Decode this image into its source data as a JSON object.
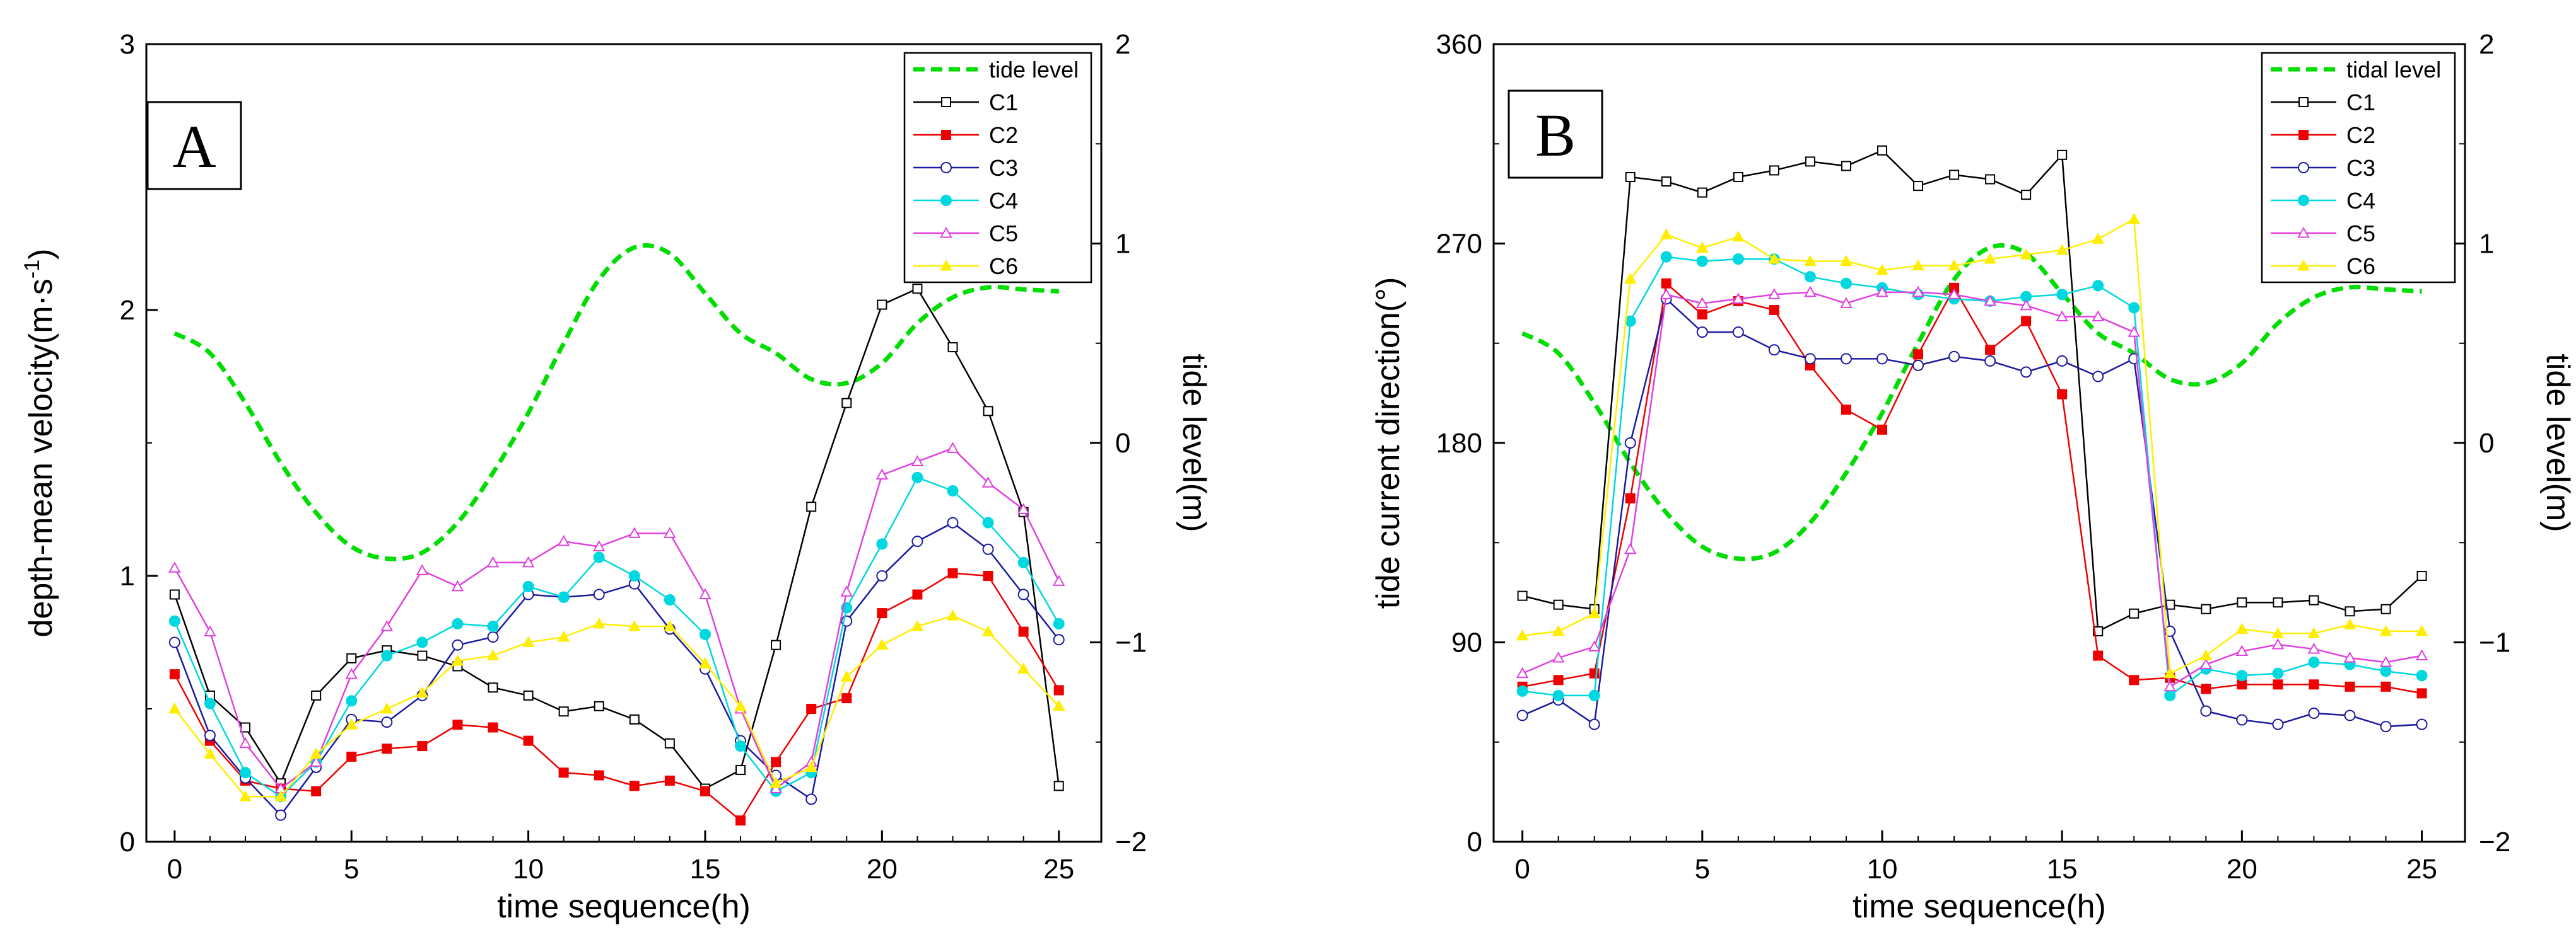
{
  "chart_data": [
    {
      "type": "line",
      "panel_label": "A",
      "xlabel": "time sequence(h)",
      "ylabel": "depth-mean velocity(m·s",
      "ylabel_sup": "-1",
      "ylabel_end": ")",
      "y2label": "tide level(m)",
      "xlim": [
        -0.8,
        26.2
      ],
      "ylim": [
        0,
        3
      ],
      "y2lim": [
        -2,
        2
      ],
      "xticks": [
        0,
        5,
        10,
        15,
        20,
        25
      ],
      "yticks": [
        0,
        1,
        2,
        3
      ],
      "y2ticks": [
        -2,
        -1,
        0,
        1,
        2
      ],
      "ytick_labels": [
        "0",
        "1",
        "2",
        "3"
      ],
      "y2tick_labels": [
        "−2",
        "−1",
        "0",
        "1",
        "2"
      ],
      "legend_position": "top-right",
      "tide": {
        "name": "tide level",
        "color": "#00dd00",
        "x": [
          0,
          1,
          2,
          3,
          4,
          5,
          6,
          7,
          8,
          9,
          10,
          11,
          12,
          13,
          14,
          15,
          16,
          17,
          18,
          19,
          20,
          21,
          22,
          23,
          24,
          25
        ],
        "values": [
          0.55,
          0.45,
          0.2,
          -0.1,
          -0.35,
          -0.52,
          -0.58,
          -0.55,
          -0.4,
          -0.15,
          0.15,
          0.5,
          0.82,
          0.98,
          0.95,
          0.75,
          0.55,
          0.45,
          0.32,
          0.3,
          0.4,
          0.6,
          0.73,
          0.78,
          0.77,
          0.76
        ]
      },
      "series": [
        {
          "name": "C1",
          "color": "#000000",
          "marker": "square",
          "fill": "none",
          "values": [
            0.93,
            0.55,
            0.43,
            0.22,
            0.55,
            0.69,
            0.72,
            0.7,
            0.66,
            0.58,
            0.55,
            0.49,
            0.51,
            0.46,
            0.37,
            0.2,
            0.27,
            0.74,
            1.26,
            1.65,
            2.02,
            2.08,
            1.86,
            1.62,
            1.24,
            0.21
          ]
        },
        {
          "name": "C2",
          "color": "#ee0000",
          "marker": "square",
          "fill": "solid",
          "values": [
            0.63,
            0.38,
            0.23,
            0.2,
            0.19,
            0.32,
            0.35,
            0.36,
            0.44,
            0.43,
            0.38,
            0.26,
            0.25,
            0.21,
            0.23,
            0.19,
            0.08,
            0.3,
            0.5,
            0.54,
            0.86,
            0.93,
            1.01,
            1.0,
            0.79,
            0.57
          ]
        },
        {
          "name": "C3",
          "color": "#1a1aa0",
          "marker": "circle",
          "fill": "none",
          "values": [
            0.75,
            0.4,
            0.24,
            0.1,
            0.28,
            0.46,
            0.45,
            0.55,
            0.74,
            0.77,
            0.93,
            0.92,
            0.93,
            0.97,
            0.8,
            0.65,
            0.38,
            0.25,
            0.16,
            0.83,
            1.0,
            1.13,
            1.2,
            1.1,
            0.93,
            0.76
          ]
        },
        {
          "name": "C4",
          "color": "#00d8e0",
          "marker": "circle",
          "fill": "solid",
          "values": [
            0.83,
            0.52,
            0.26,
            0.17,
            0.3,
            0.53,
            0.7,
            0.75,
            0.82,
            0.81,
            0.96,
            0.92,
            1.07,
            1.0,
            0.91,
            0.78,
            0.36,
            0.19,
            0.26,
            0.88,
            1.12,
            1.37,
            1.32,
            1.2,
            1.05,
            0.82
          ]
        },
        {
          "name": "C5",
          "color": "#e040e0",
          "marker": "triangle",
          "fill": "none",
          "values": [
            1.03,
            0.79,
            0.37,
            0.2,
            0.3,
            0.63,
            0.81,
            1.02,
            0.96,
            1.05,
            1.05,
            1.13,
            1.11,
            1.16,
            1.16,
            0.93,
            0.5,
            0.2,
            0.3,
            0.94,
            1.38,
            1.43,
            1.48,
            1.35,
            1.25,
            0.98
          ]
        },
        {
          "name": "C6",
          "color": "#ffee00",
          "marker": "triangle",
          "fill": "solid",
          "values": [
            0.5,
            0.33,
            0.17,
            0.17,
            0.33,
            0.44,
            0.5,
            0.56,
            0.68,
            0.7,
            0.75,
            0.77,
            0.82,
            0.81,
            0.81,
            0.67,
            0.51,
            0.22,
            0.28,
            0.62,
            0.74,
            0.81,
            0.85,
            0.79,
            0.65,
            0.51
          ]
        }
      ]
    },
    {
      "type": "line",
      "panel_label": "B",
      "xlabel": "time sequence(h)",
      "ylabel": "tide current direction(°)",
      "ylabel_sup": "",
      "ylabel_end": "",
      "y2label": "tide level(m)",
      "xlim": [
        -0.8,
        26.2
      ],
      "ylim": [
        0,
        360
      ],
      "y2lim": [
        -2,
        2
      ],
      "xticks": [
        0,
        5,
        10,
        15,
        20,
        25
      ],
      "yticks": [
        0,
        90,
        180,
        270,
        360
      ],
      "y2ticks": [
        -2,
        -1,
        0,
        1,
        2
      ],
      "ytick_labels": [
        "0",
        "90",
        "180",
        "270",
        "360"
      ],
      "y2tick_labels": [
        "−2",
        "−1",
        "0",
        "1",
        "2"
      ],
      "legend_position": "top-right",
      "tide": {
        "name": "tidal level",
        "color": "#00dd00",
        "x": [
          0,
          1,
          2,
          3,
          4,
          5,
          6,
          7,
          8,
          9,
          10,
          11,
          12,
          13,
          14,
          15,
          16,
          17,
          18,
          19,
          20,
          21,
          22,
          23,
          24,
          25
        ],
        "values": [
          0.55,
          0.45,
          0.2,
          -0.1,
          -0.35,
          -0.52,
          -0.58,
          -0.55,
          -0.4,
          -0.15,
          0.15,
          0.5,
          0.82,
          0.98,
          0.95,
          0.75,
          0.55,
          0.45,
          0.32,
          0.3,
          0.4,
          0.6,
          0.73,
          0.78,
          0.77,
          0.76
        ]
      },
      "series": [
        {
          "name": "C1",
          "color": "#000000",
          "marker": "square",
          "fill": "none",
          "values": [
            111,
            107,
            105,
            300,
            298,
            293,
            300,
            303,
            307,
            305,
            312,
            296,
            301,
            299,
            292,
            310,
            95,
            103,
            107,
            105,
            108,
            108,
            109,
            104,
            105,
            120
          ]
        },
        {
          "name": "C2",
          "color": "#ee0000",
          "marker": "square",
          "fill": "solid",
          "values": [
            70,
            73,
            76,
            155,
            252,
            238,
            244,
            240,
            215,
            195,
            186,
            220,
            250,
            222,
            235,
            202,
            84,
            73,
            74,
            69,
            71,
            71,
            71,
            70,
            70,
            67
          ]
        },
        {
          "name": "C3",
          "color": "#1a1aa0",
          "marker": "circle",
          "fill": "none",
          "values": [
            57,
            64,
            53,
            180,
            245,
            230,
            230,
            222,
            218,
            218,
            218,
            215,
            219,
            217,
            212,
            217,
            210,
            218,
            95,
            59,
            55,
            53,
            58,
            57,
            52,
            53
          ]
        },
        {
          "name": "C4",
          "color": "#00d8e0",
          "marker": "circle",
          "fill": "solid",
          "values": [
            68,
            66,
            66,
            235,
            264,
            262,
            263,
            263,
            255,
            252,
            250,
            247,
            245,
            244,
            246,
            247,
            251,
            241,
            66,
            78,
            75,
            76,
            81,
            80,
            77,
            75
          ]
        },
        {
          "name": "C5",
          "color": "#e040e0",
          "marker": "triangle",
          "fill": "none",
          "values": [
            76,
            83,
            88,
            132,
            247,
            243,
            245,
            247,
            248,
            243,
            248,
            248,
            247,
            244,
            242,
            237,
            237,
            230,
            70,
            80,
            86,
            89,
            87,
            83,
            81,
            84
          ]
        },
        {
          "name": "C6",
          "color": "#ffee00",
          "marker": "triangle",
          "fill": "solid",
          "values": [
            93,
            95,
            103,
            254,
            274,
            268,
            273,
            263,
            262,
            262,
            258,
            260,
            260,
            263,
            265,
            267,
            272,
            281,
            76,
            84,
            96,
            94,
            94,
            98,
            95,
            95
          ]
        }
      ]
    }
  ]
}
